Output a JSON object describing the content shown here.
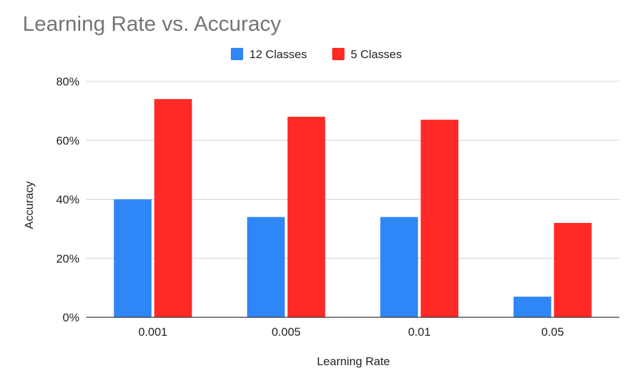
{
  "chart_data": {
    "type": "bar",
    "title": "Learning Rate vs. Accuracy",
    "xlabel": "Learning Rate",
    "ylabel": "Accuracy",
    "categories": [
      "0.001",
      "0.005",
      "0.01",
      "0.05"
    ],
    "series": [
      {
        "name": "12 Classes",
        "values": [
          40,
          34,
          34,
          7
        ],
        "color": "#2f86f6"
      },
      {
        "name": "5 Classes",
        "values": [
          74,
          68,
          67,
          32
        ],
        "color": "#ff2a26"
      }
    ],
    "y_ticks": [
      "0%",
      "20%",
      "40%",
      "60%",
      "80%"
    ],
    "ylim": [
      0,
      80
    ],
    "y_unit": "%",
    "grid": true,
    "legend_position": "top-center",
    "colors": {
      "title": "#757575",
      "text": "#222222",
      "grid": "#d0d0d0",
      "axis": "#333333"
    }
  }
}
